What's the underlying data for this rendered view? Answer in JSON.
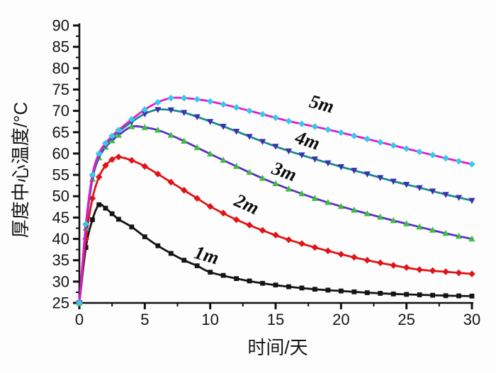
{
  "figure": {
    "background": "#fdfdfd",
    "axis_color": "#111111",
    "text_color": "#141414"
  },
  "chart_data": {
    "type": "line",
    "title": "",
    "xlabel": "时间/天",
    "ylabel": "厚度中心温度/°C",
    "xlim": [
      0,
      30
    ],
    "ylim": [
      25,
      90
    ],
    "x_major_ticks": [
      0,
      5,
      10,
      15,
      20,
      25,
      30
    ],
    "x_minor_ticks": [
      2.5,
      7.5,
      12.5,
      17.5,
      22.5,
      27.5
    ],
    "y_major_ticks": [
      25,
      30,
      35,
      40,
      45,
      50,
      55,
      60,
      65,
      70,
      75,
      80,
      85,
      90
    ],
    "y_minor_ticks": [
      27.5,
      32.5,
      37.5,
      42.5,
      47.5,
      52.5,
      57.5,
      62.5,
      67.5,
      72.5,
      77.5,
      82.5,
      87.5
    ],
    "grid": false,
    "legend_position": "inline-curve-labels",
    "x_days": [
      0,
      0.5,
      1,
      1.5,
      2,
      2.5,
      3,
      4,
      5,
      6,
      7,
      8,
      9,
      10,
      12,
      14,
      16,
      18,
      20,
      22,
      24,
      26,
      28,
      30
    ],
    "series": [
      {
        "name": "1m",
        "line_color": "#141414",
        "marker": "square",
        "marker_color": "#141414",
        "values": [
          25,
          38,
          44.5,
          48,
          47.2,
          45.9,
          44.6,
          42.8,
          40.5,
          38.4,
          36.6,
          35,
          33.7,
          32.2,
          30.7,
          29.6,
          28.8,
          28.2,
          27.8,
          27.4,
          27.1,
          26.9,
          26.7,
          26.6
        ],
        "peak": {
          "day": 1.5,
          "temp": 48
        },
        "label": {
          "text": "1m",
          "day": 9.6,
          "temp": 34.8,
          "angle": 16
        }
      },
      {
        "name": "2m",
        "line_color": "#e01316",
        "marker": "diamond",
        "marker_color": "#e01316",
        "values": [
          25,
          40,
          49.5,
          54.5,
          57.2,
          58.6,
          59.2,
          58.4,
          57,
          55.2,
          53.3,
          51.4,
          49.5,
          47.6,
          44.5,
          42,
          39.8,
          38,
          36.4,
          35,
          33.8,
          32.8,
          32.3,
          31.8
        ],
        "peak": {
          "day": 3,
          "temp": 59.2
        },
        "label": {
          "text": "2m",
          "day": 12.6,
          "temp": 46.8,
          "angle": 24
        }
      },
      {
        "name": "3m",
        "line_color": "#5a2fc8",
        "marker": "triangle-up",
        "marker_color": "#3dbe3d",
        "values": [
          25,
          42.5,
          54,
          59,
          61.5,
          63,
          64.3,
          66.3,
          66.1,
          65.5,
          64.3,
          62.9,
          61.4,
          59.9,
          57,
          54.2,
          51.7,
          49.5,
          47.6,
          45.9,
          44.3,
          42.8,
          41.3,
          40
        ],
        "peak": {
          "day": 4,
          "temp": 66.3
        },
        "label": {
          "text": "3m",
          "day": 15.5,
          "temp": 54.4,
          "angle": 20
        }
      },
      {
        "name": "4m",
        "line_color": "#18898c",
        "marker": "triangle-down",
        "marker_color": "#3c2fb2",
        "values": [
          25,
          43,
          54.5,
          59.5,
          62,
          63.7,
          65.1,
          67.4,
          69.3,
          70.3,
          70.2,
          69.6,
          68.6,
          67.5,
          65.2,
          62.8,
          60.6,
          58.7,
          56.9,
          55.2,
          53.5,
          52,
          50.4,
          49
        ],
        "peak": {
          "day": 6,
          "temp": 70.3
        },
        "label": {
          "text": "4m",
          "day": 17.3,
          "temp": 61.7,
          "angle": 18
        }
      },
      {
        "name": "5m",
        "line_color": "#e219cc",
        "marker": "diamond",
        "marker_color": "#38c9ea",
        "values": [
          25,
          43.5,
          55,
          60,
          62.4,
          64.1,
          65.5,
          68,
          70.3,
          72,
          73,
          73,
          72.7,
          72.2,
          70.8,
          69.2,
          67.6,
          66.3,
          64.9,
          63.4,
          61.9,
          60.4,
          58.9,
          57.5
        ],
        "peak": {
          "day": 7,
          "temp": 73
        },
        "label": {
          "text": "5m",
          "day": 18.4,
          "temp": 70.2,
          "angle": 15
        }
      }
    ]
  }
}
